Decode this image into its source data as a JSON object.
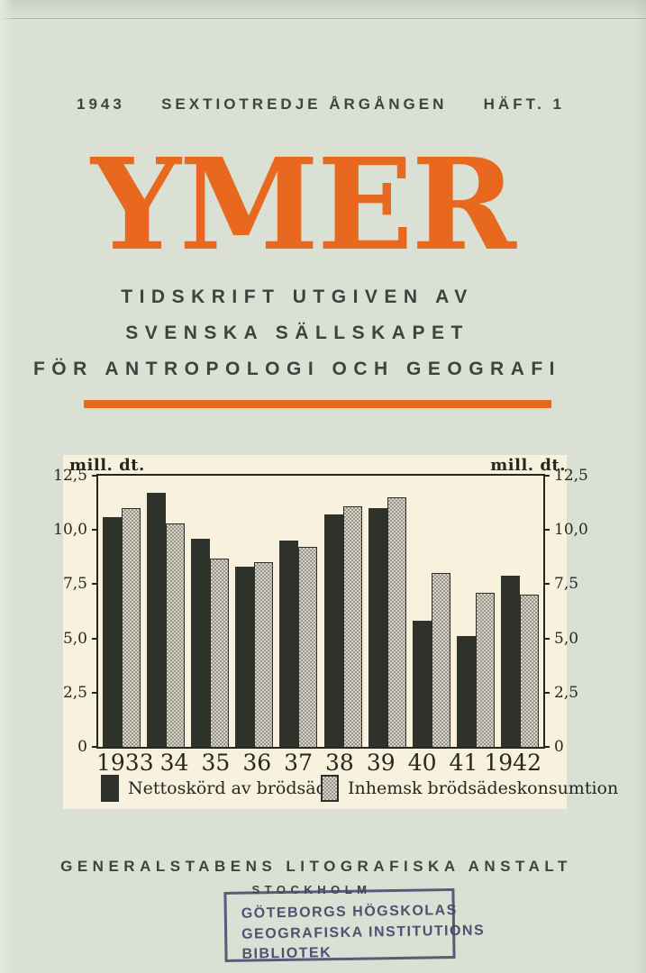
{
  "masthead": {
    "year": "1943",
    "edition": "SEXTIOTREDJE ÅRGÅNGEN",
    "issue": "HÄFT. 1"
  },
  "title": "YMER",
  "subtitle_lines": [
    "TIDSKRIFT UTGIVEN AV",
    "SVENSKA SÄLLSKAPET",
    "FÖR ANTROPOLOGI OCH GEOGRAFI"
  ],
  "colors": {
    "accent_orange": "#e7681e",
    "page_background": "#dae0d4",
    "chart_background": "#f7f1dd",
    "dark_bar": "#2e322b",
    "light_bar": "#d6d3c6",
    "stamp_ink": "#3f4569",
    "text": "#3c443c"
  },
  "chart_data": {
    "type": "bar",
    "unit_label_left": "mill. dt.",
    "unit_label_right": "mill. dt.",
    "categories": [
      "1933",
      "34",
      "35",
      "36",
      "37",
      "38",
      "39",
      "40",
      "41",
      "1942"
    ],
    "series": [
      {
        "name": "Nettoskörd av brödsäd",
        "style": "dark",
        "values": [
          10.6,
          11.7,
          9.6,
          8.3,
          9.5,
          10.7,
          11.0,
          5.8,
          5.1,
          7.9
        ]
      },
      {
        "name": "Inhemsk brödsädeskonsumtion",
        "style": "light",
        "values": [
          11.0,
          10.3,
          8.7,
          8.5,
          9.2,
          11.1,
          11.5,
          8.0,
          7.1,
          7.0
        ]
      }
    ],
    "ylim": [
      0,
      12.5
    ],
    "yticks": [
      {
        "label": "12,5",
        "value": 12.5
      },
      {
        "label": "10,0",
        "value": 10.0
      },
      {
        "label": "7,5",
        "value": 7.5
      },
      {
        "label": "5,0",
        "value": 5.0
      },
      {
        "label": "2,5",
        "value": 2.5
      },
      {
        "label": "0",
        "value": 0
      }
    ],
    "grid": false,
    "legend_position": "bottom"
  },
  "footer": {
    "printer": "GENERALSTABENS LITOGRAFISKA ANSTALT",
    "city": "STOCKHOLM"
  },
  "stamp": {
    "lines": [
      "GÖTEBORGS HÖGSKOLAS",
      "GEOGRAFISKA INSTITUTIONS",
      "BIBLIOTEK"
    ]
  }
}
